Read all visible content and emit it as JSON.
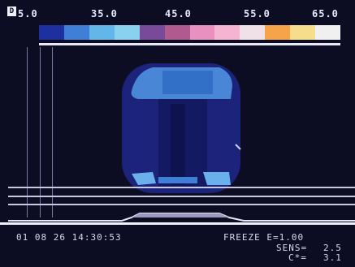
{
  "scale": {
    "ticks": [
      "5.0",
      "35.0",
      "45.0",
      "55.0",
      "65.0"
    ],
    "colors": [
      "#1e2fa0",
      "#3f7fd8",
      "#62b6e8",
      "#8ad0ef",
      "#7a4a9a",
      "#b05a90",
      "#e890c0",
      "#f5b5d0",
      "#f0e0e8",
      "#f6a44a",
      "#f6dd8c",
      "#f0f0f0"
    ]
  },
  "badge": "D",
  "status": {
    "timestamp": "01 08 26 14:30:53",
    "freeze": "FREEZE E=1.00",
    "sens_label": "SENS=",
    "sens_value": "2.5",
    "ct_label": "C*=",
    "ct_value": "3.1"
  }
}
